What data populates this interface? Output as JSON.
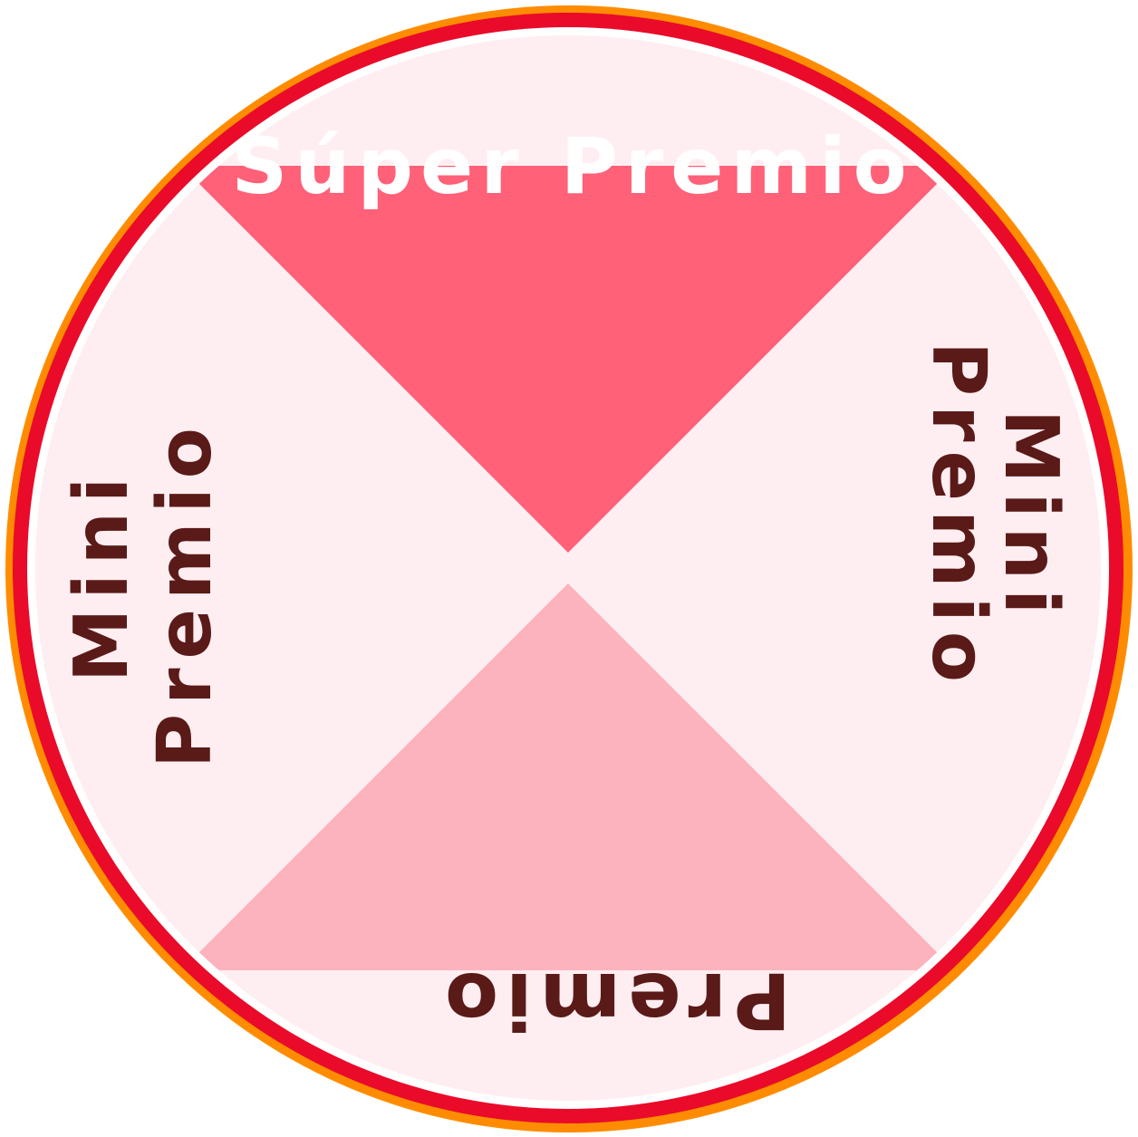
{
  "wheel": {
    "segments": [
      {
        "id": "top",
        "label": "Súper Premio",
        "color": "#ff6178",
        "text_color": "#ffffff"
      },
      {
        "id": "right",
        "label_line1": "Mini",
        "label_line2": "Premio",
        "color": "#ffeef1",
        "text_color": "#5a1a18"
      },
      {
        "id": "bottom",
        "label": "Premio",
        "color": "#fdb3bd",
        "text_color": "#5a1a18"
      },
      {
        "id": "left",
        "label_line1": "Mini",
        "label_line2": "Premio",
        "color": "#ffeef1",
        "text_color": "#5a1a18"
      }
    ],
    "colors": {
      "outer_ring": "#ff8c00",
      "red_ring": "#ea0a2a",
      "inner_white_ring": "#ffffff"
    }
  }
}
